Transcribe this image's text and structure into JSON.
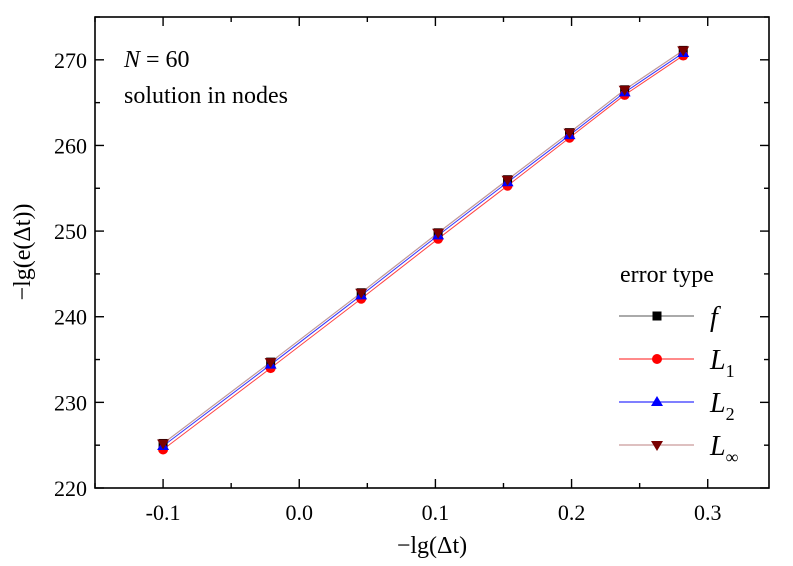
{
  "chart_data": {
    "type": "line",
    "xlabel": "−lg(Δt)",
    "ylabel": "−lg(e(Δt))",
    "xlim": [
      -0.15,
      0.345
    ],
    "ylim": [
      220,
      275
    ],
    "xticks": [
      "-0.1",
      "0.0",
      "0.1",
      "0.2",
      "0.3"
    ],
    "xtick_values": [
      -0.1,
      0.0,
      0.1,
      0.2,
      0.3
    ],
    "yticks": [
      "220",
      "230",
      "240",
      "250",
      "260",
      "270"
    ],
    "ytick_values": [
      220,
      230,
      240,
      250,
      260,
      270
    ],
    "grid": false,
    "annotations": [
      {
        "label_italic": "N",
        "text": " = 60"
      },
      {
        "text": "solution in nodes"
      }
    ],
    "legend": {
      "title": "error type",
      "placement": "bottom-right"
    },
    "x": [
      -0.1,
      -0.021,
      0.0455,
      0.102,
      0.153,
      0.1985,
      0.239,
      0.282
    ],
    "series": [
      {
        "name": "f",
        "name_sub": "",
        "marker": "square",
        "color": "#000000",
        "line_color": "#777777",
        "values": [
          225.2,
          234.7,
          242.8,
          249.8,
          256.0,
          261.5,
          266.5,
          271.1
        ]
      },
      {
        "name": "L",
        "name_sub": "1",
        "marker": "circle",
        "color": "#ff0000",
        "line_color": "#ff4444",
        "values": [
          224.5,
          234.0,
          242.1,
          249.1,
          255.3,
          260.9,
          265.9,
          270.5
        ]
      },
      {
        "name": "L",
        "name_sub": "2",
        "marker": "triangle-up",
        "color": "#0000ff",
        "line_color": "#3333ff",
        "values": [
          224.9,
          234.4,
          242.5,
          249.5,
          255.7,
          261.2,
          266.2,
          270.8
        ]
      },
      {
        "name": "L",
        "name_sub": "∞",
        "marker": "triangle-down",
        "color": "#7a0000",
        "line_color": "#c99a9a",
        "values": [
          225.2,
          234.7,
          242.8,
          249.8,
          256.0,
          261.5,
          266.5,
          271.1
        ]
      }
    ]
  }
}
